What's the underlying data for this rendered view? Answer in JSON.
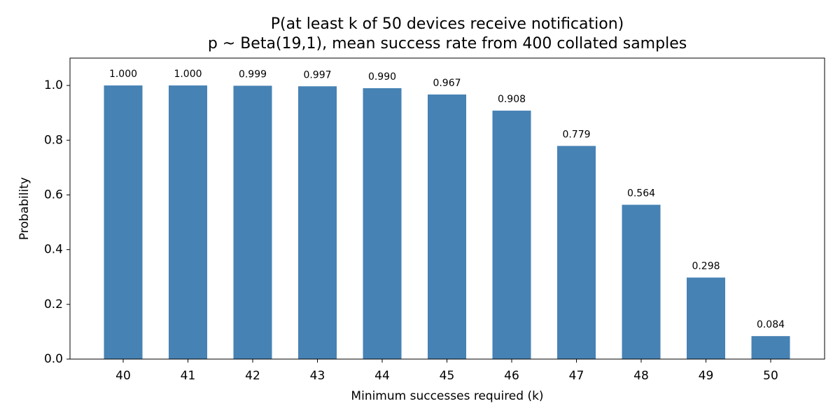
{
  "chart_data": {
    "type": "bar",
    "title": "P(at least k of 50 devices receive notification)",
    "subtitle": "p ~ Beta(19,1), mean success rate from 400 collated samples",
    "x_label": "Minimum successes required (k)",
    "y_label": "Probability",
    "categories": [
      "40",
      "41",
      "42",
      "43",
      "44",
      "45",
      "46",
      "47",
      "48",
      "49",
      "50"
    ],
    "values": [
      1.0,
      1.0,
      0.999,
      0.997,
      0.99,
      0.967,
      0.908,
      0.779,
      0.564,
      0.298,
      0.084
    ],
    "value_labels": [
      "1.000",
      "1.000",
      "0.999",
      "0.997",
      "0.990",
      "0.967",
      "0.908",
      "0.779",
      "0.564",
      "0.298",
      "0.084"
    ],
    "color": "#4682b4",
    "ylim": [
      0,
      1.1
    ],
    "yticks": [
      {
        "value": 0,
        "label": "0.0"
      },
      {
        "value": 0.2,
        "label": "0.2"
      },
      {
        "value": 0.4,
        "label": "0.4"
      },
      {
        "value": 0.6,
        "label": "0.6"
      },
      {
        "value": 0.8,
        "label": "0.8"
      },
      {
        "value": 1.0,
        "label": "1.0"
      }
    ],
    "grid": false
  }
}
